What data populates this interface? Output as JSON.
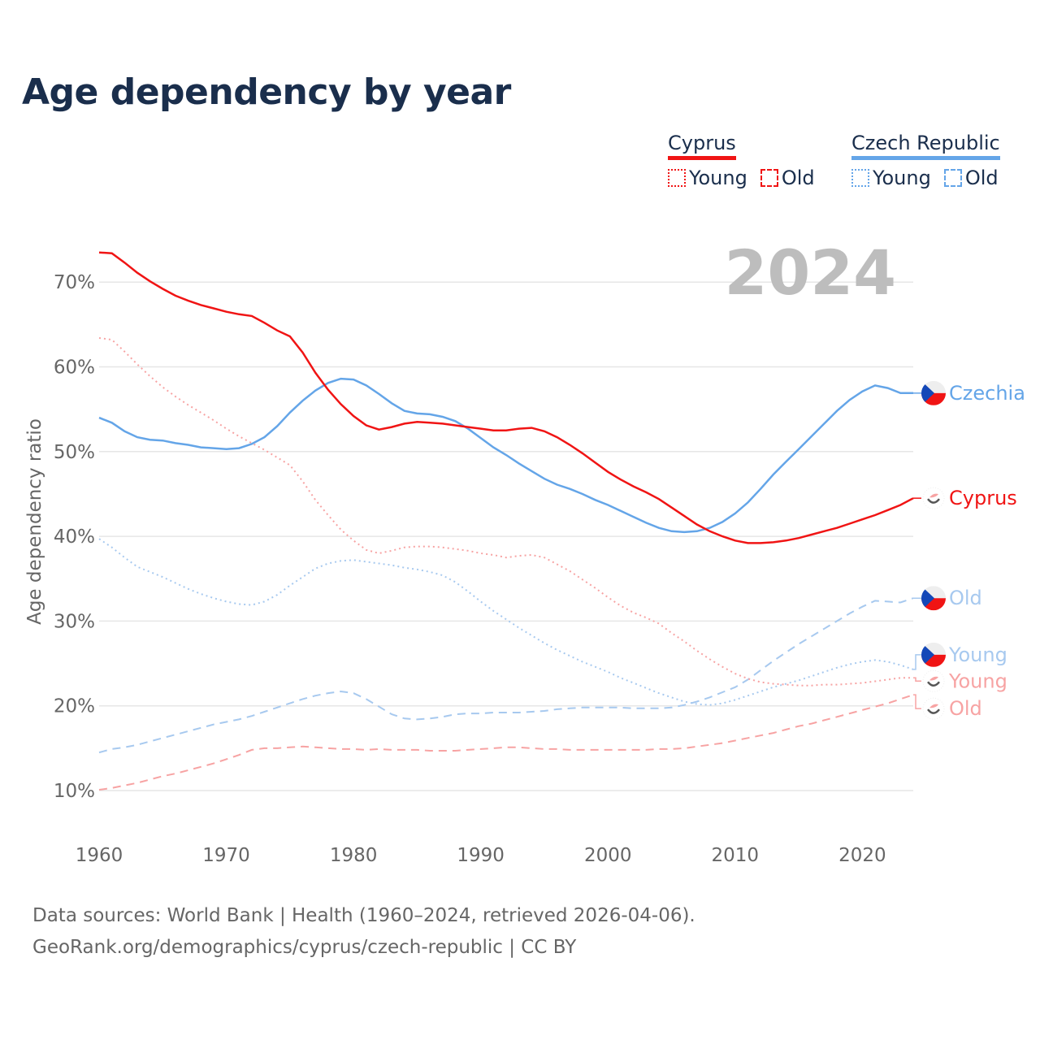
{
  "title": "Age dependency by year",
  "year_watermark": "2024",
  "legend": {
    "groups": [
      {
        "name": "Cyprus",
        "color": "#f01414",
        "items": [
          {
            "label": "Young",
            "style": "dotted"
          },
          {
            "label": "Old",
            "style": "dashed"
          }
        ]
      },
      {
        "name": "Czech Republic",
        "color": "#64a5e8",
        "items": [
          {
            "label": "Young",
            "style": "dotted"
          },
          {
            "label": "Old",
            "style": "dashed"
          }
        ]
      }
    ]
  },
  "source": {
    "line1": "Data sources: World Bank | Health (1960–2024, retrieved 2026-04-06).",
    "line2": "GeoRank.org/demographics/cyprus/czech-republic | CC BY"
  },
  "chart_data": {
    "type": "line",
    "title": "Age dependency by year",
    "xlabel": "",
    "ylabel": "Age dependency ratio",
    "xlim": [
      1960,
      2024
    ],
    "ylim": [
      5,
      75
    ],
    "x_ticks": [
      "1960",
      "1970",
      "1980",
      "1990",
      "2000",
      "2010",
      "2020"
    ],
    "y_ticks": [
      "10%",
      "20%",
      "30%",
      "40%",
      "50%",
      "60%",
      "70%"
    ],
    "grid": true,
    "legend_position": "top-right",
    "x_start": 1960,
    "series": [
      {
        "name": "Cyprus",
        "end_label": "Cyprus",
        "flag": "cyprus",
        "color": "#f01414",
        "style": "solid",
        "values": [
          73.5,
          73.4,
          72.3,
          71.1,
          70.1,
          69.2,
          68.4,
          67.8,
          67.3,
          66.9,
          66.5,
          66.2,
          66.0,
          65.2,
          64.3,
          63.6,
          61.7,
          59.3,
          57.3,
          55.6,
          54.2,
          53.1,
          52.6,
          52.9,
          53.3,
          53.5,
          53.4,
          53.3,
          53.1,
          52.9,
          52.7,
          52.5,
          52.5,
          52.7,
          52.8,
          52.4,
          51.7,
          50.8,
          49.8,
          48.7,
          47.6,
          46.7,
          45.9,
          45.2,
          44.4,
          43.4,
          42.4,
          41.4,
          40.6,
          40.0,
          39.5,
          39.2,
          39.2,
          39.3,
          39.5,
          39.8,
          40.2,
          40.6,
          41.0,
          41.5,
          42.0,
          42.5,
          43.1,
          43.7,
          44.5
        ]
      },
      {
        "name": "Cyprus Young",
        "end_label": "Young",
        "flag": "cyprus",
        "color": "#f7a3a3",
        "style": "dotted",
        "values": [
          63.4,
          63.2,
          61.8,
          60.3,
          58.9,
          57.6,
          56.5,
          55.5,
          54.6,
          53.7,
          52.7,
          51.8,
          51.0,
          50.2,
          49.3,
          48.4,
          46.5,
          44.3,
          42.5,
          40.8,
          39.5,
          38.4,
          38.0,
          38.3,
          38.7,
          38.8,
          38.8,
          38.7,
          38.5,
          38.3,
          38.0,
          37.8,
          37.5,
          37.7,
          37.8,
          37.5,
          36.7,
          35.9,
          34.9,
          33.9,
          32.8,
          31.8,
          31.0,
          30.4,
          29.7,
          28.6,
          27.6,
          26.5,
          25.5,
          24.6,
          23.8,
          23.2,
          22.8,
          22.6,
          22.5,
          22.4,
          22.4,
          22.5,
          22.5,
          22.6,
          22.7,
          22.9,
          23.1,
          23.3,
          23.3
        ]
      },
      {
        "name": "Cyprus Old",
        "end_label": "Old",
        "flag": "cyprus",
        "color": "#f7a3a3",
        "style": "dashed",
        "values": [
          10.1,
          10.3,
          10.6,
          10.9,
          11.3,
          11.7,
          12.0,
          12.4,
          12.8,
          13.2,
          13.7,
          14.2,
          14.8,
          15.0,
          15.0,
          15.1,
          15.2,
          15.1,
          15.0,
          14.9,
          14.9,
          14.8,
          14.9,
          14.8,
          14.8,
          14.8,
          14.7,
          14.7,
          14.7,
          14.8,
          14.9,
          15.0,
          15.1,
          15.1,
          15.0,
          14.9,
          14.9,
          14.8,
          14.8,
          14.8,
          14.8,
          14.8,
          14.8,
          14.8,
          14.9,
          14.9,
          15.0,
          15.2,
          15.4,
          15.6,
          15.9,
          16.2,
          16.5,
          16.8,
          17.2,
          17.6,
          17.9,
          18.3,
          18.7,
          19.1,
          19.5,
          19.9,
          20.3,
          20.8,
          21.3
        ]
      },
      {
        "name": "Czech Republic",
        "end_label": "Czechia",
        "flag": "czechia",
        "color": "#64a5e8",
        "style": "solid",
        "values": [
          54.0,
          53.4,
          52.4,
          51.7,
          51.4,
          51.3,
          51.0,
          50.8,
          50.5,
          50.4,
          50.3,
          50.4,
          50.9,
          51.7,
          53.0,
          54.6,
          56.0,
          57.2,
          58.1,
          58.6,
          58.5,
          57.8,
          56.8,
          55.7,
          54.8,
          54.5,
          54.4,
          54.1,
          53.6,
          52.7,
          51.6,
          50.5,
          49.6,
          48.6,
          47.7,
          46.8,
          46.1,
          45.6,
          45.0,
          44.3,
          43.7,
          43.0,
          42.3,
          41.6,
          41.0,
          40.6,
          40.5,
          40.6,
          41.0,
          41.7,
          42.7,
          44.0,
          45.6,
          47.3,
          48.8,
          50.3,
          51.8,
          53.3,
          54.8,
          56.1,
          57.1,
          57.8,
          57.5,
          56.9,
          56.9
        ]
      },
      {
        "name": "Czech Republic Young",
        "end_label": "Young",
        "flag": "czechia",
        "color": "#a7c9ef",
        "style": "dotted",
        "values": [
          39.7,
          38.7,
          37.5,
          36.4,
          35.8,
          35.2,
          34.5,
          33.8,
          33.2,
          32.7,
          32.3,
          32.0,
          31.9,
          32.3,
          33.1,
          34.2,
          35.2,
          36.2,
          36.8,
          37.1,
          37.2,
          37.0,
          36.8,
          36.6,
          36.3,
          36.1,
          35.8,
          35.4,
          34.6,
          33.5,
          32.3,
          31.2,
          30.2,
          29.2,
          28.3,
          27.4,
          26.6,
          25.9,
          25.2,
          24.6,
          24.0,
          23.3,
          22.7,
          22.1,
          21.5,
          21.0,
          20.5,
          20.2,
          20.1,
          20.3,
          20.7,
          21.2,
          21.7,
          22.2,
          22.6,
          23.0,
          23.5,
          24.0,
          24.5,
          24.9,
          25.2,
          25.4,
          25.2,
          24.8,
          24.3
        ]
      },
      {
        "name": "Czech Republic Old",
        "end_label": "Old",
        "flag": "czechia",
        "color": "#a7c9ef",
        "style": "dashed",
        "values": [
          14.5,
          14.9,
          15.1,
          15.4,
          15.8,
          16.2,
          16.6,
          17.0,
          17.4,
          17.8,
          18.1,
          18.4,
          18.8,
          19.3,
          19.8,
          20.3,
          20.8,
          21.2,
          21.5,
          21.7,
          21.5,
          20.8,
          19.9,
          19.0,
          18.5,
          18.4,
          18.5,
          18.7,
          19.0,
          19.1,
          19.1,
          19.2,
          19.2,
          19.2,
          19.3,
          19.4,
          19.6,
          19.7,
          19.8,
          19.8,
          19.8,
          19.8,
          19.7,
          19.7,
          19.7,
          19.8,
          20.1,
          20.5,
          21.0,
          21.6,
          22.2,
          23.1,
          24.2,
          25.3,
          26.3,
          27.3,
          28.2,
          29.1,
          30.0,
          30.9,
          31.7,
          32.4,
          32.3,
          32.2,
          32.7
        ]
      }
    ]
  }
}
